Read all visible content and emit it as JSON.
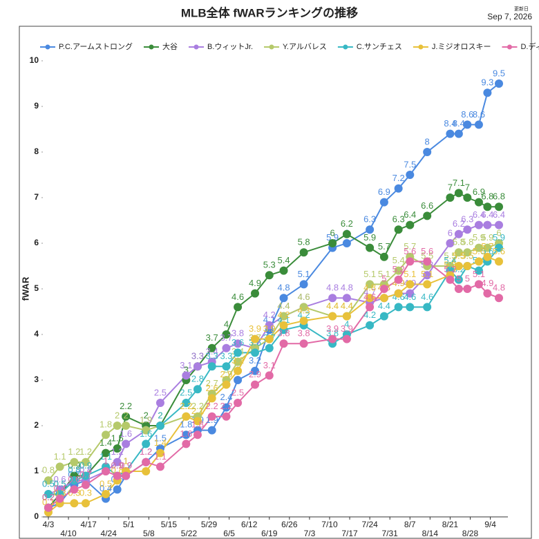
{
  "chart_data": {
    "type": "line",
    "title": "MLB全体 fWARランキングの推移",
    "update_label": "更新日",
    "update_date": "Sep 7, 2026",
    "ylabel": "fWAR",
    "x": [
      "4/3",
      "4/7",
      "4/12",
      "4/16",
      "4/23",
      "4/27",
      "4/30",
      "5/7",
      "5/12",
      "5/21",
      "5/25",
      "5/30",
      "6/4",
      "6/8",
      "6/14",
      "6/19",
      "6/24",
      "7/1",
      "7/11",
      "7/16",
      "7/24",
      "7/29",
      "8/3",
      "8/7",
      "8/13",
      "8/21",
      "8/24",
      "8/27",
      "8/31",
      "9/3",
      "9/7"
    ],
    "xticks": [
      "4/3",
      "4/10",
      "4/17",
      "4/24",
      "5/1",
      "5/8",
      "5/15",
      "5/22",
      "5/29",
      "6/5",
      "6/12",
      "6/19",
      "6/26",
      "7/3",
      "7/10",
      "7/17",
      "7/24",
      "7/31",
      "8/7",
      "8/14",
      "8/21",
      "8/28",
      "9/4"
    ],
    "ylim": [
      0,
      10
    ],
    "yticks": [
      0,
      1,
      2,
      3,
      4,
      5,
      6,
      7,
      8,
      9,
      10
    ],
    "grid": false,
    "legend": "top",
    "series": [
      {
        "name": "P.C.アームストロング",
        "color": "#4a89e0",
        "values": [
          0.2,
          0.3,
          0.7,
          0.8,
          0.4,
          0.6,
          0.9,
          1.2,
          1.5,
          1.8,
          1.9,
          1.9,
          2.4,
          3.0,
          3.2,
          4.1,
          4.8,
          5.1,
          5.9,
          6.0,
          6.3,
          6.9,
          7.2,
          7.5,
          8.0,
          8.4,
          8.4,
          8.6,
          8.6,
          9.3,
          9.5
        ]
      },
      {
        "name": "大谷",
        "color": "#3a8c3a",
        "values": [
          0.2,
          0.5,
          0.9,
          0.9,
          1.4,
          1.5,
          2.2,
          2.0,
          2.0,
          3.0,
          3.3,
          3.7,
          4.0,
          4.6,
          4.9,
          5.3,
          5.4,
          5.8,
          6.0,
          6.2,
          5.9,
          5.7,
          6.3,
          6.4,
          6.6,
          7.0,
          7.1,
          7.0,
          6.9,
          6.8,
          6.8
        ]
      },
      {
        "name": "B.ウィットJr.",
        "color": "#a97ee0",
        "values": [
          0.5,
          0.6,
          0.8,
          0.8,
          1.0,
          1.2,
          1.6,
          1.9,
          2.5,
          3.1,
          3.3,
          3.4,
          3.7,
          3.8,
          3.7,
          4.2,
          4.4,
          4.6,
          4.8,
          4.8,
          4.7,
          4.8,
          4.9,
          4.9,
          5.3,
          6.0,
          6.2,
          6.3,
          6.4,
          6.4,
          6.4
        ]
      },
      {
        "name": "Y.アルバレス",
        "color": "#b5c96a",
        "values": [
          0.8,
          1.1,
          1.2,
          1.2,
          1.8,
          2.0,
          2.0,
          1.9,
          2.0,
          2.2,
          2.2,
          2.7,
          3.0,
          3.4,
          3.7,
          3.9,
          4.4,
          4.6,
          4.4,
          4.4,
          5.1,
          5.1,
          5.4,
          5.7,
          5.5,
          5.5,
          5.8,
          5.8,
          5.9,
          5.9,
          6.0
        ]
      },
      {
        "name": "C.サンチェス",
        "color": "#37b8c4",
        "values": [
          0.5,
          0.5,
          0.8,
          0.9,
          1.1,
          0.9,
          1.0,
          1.6,
          2.0,
          2.5,
          2.8,
          3.3,
          3.3,
          3.6,
          3.6,
          3.7,
          4.1,
          4.2,
          3.8,
          4.0,
          4.2,
          4.4,
          4.6,
          4.6,
          4.6,
          5.4,
          5.2,
          5.5,
          5.4,
          5.6,
          5.9
        ]
      },
      {
        "name": "J.ミジオロスキー",
        "color": "#e8c13a",
        "values": [
          0.1,
          0.3,
          0.3,
          0.3,
          0.5,
          0.8,
          1.0,
          1.0,
          1.4,
          2.2,
          2.1,
          2.6,
          2.9,
          3.2,
          3.9,
          3.9,
          4.2,
          4.3,
          4.4,
          4.4,
          4.8,
          4.8,
          4.9,
          5.1,
          5.1,
          5.3,
          5.5,
          5.5,
          5.6,
          5.7,
          5.6
        ]
      },
      {
        "name": "D.ディングラー",
        "color": "#e26aa6",
        "values": [
          0.2,
          0.4,
          0.6,
          0.7,
          1.0,
          0.9,
          0.9,
          1.2,
          1.1,
          1.6,
          1.8,
          2.2,
          2.2,
          2.5,
          2.9,
          3.1,
          3.8,
          3.8,
          3.9,
          3.9,
          4.6,
          5.0,
          5.2,
          5.6,
          5.6,
          5.2,
          5.0,
          5.0,
          5.1,
          4.9,
          4.8
        ]
      }
    ]
  }
}
